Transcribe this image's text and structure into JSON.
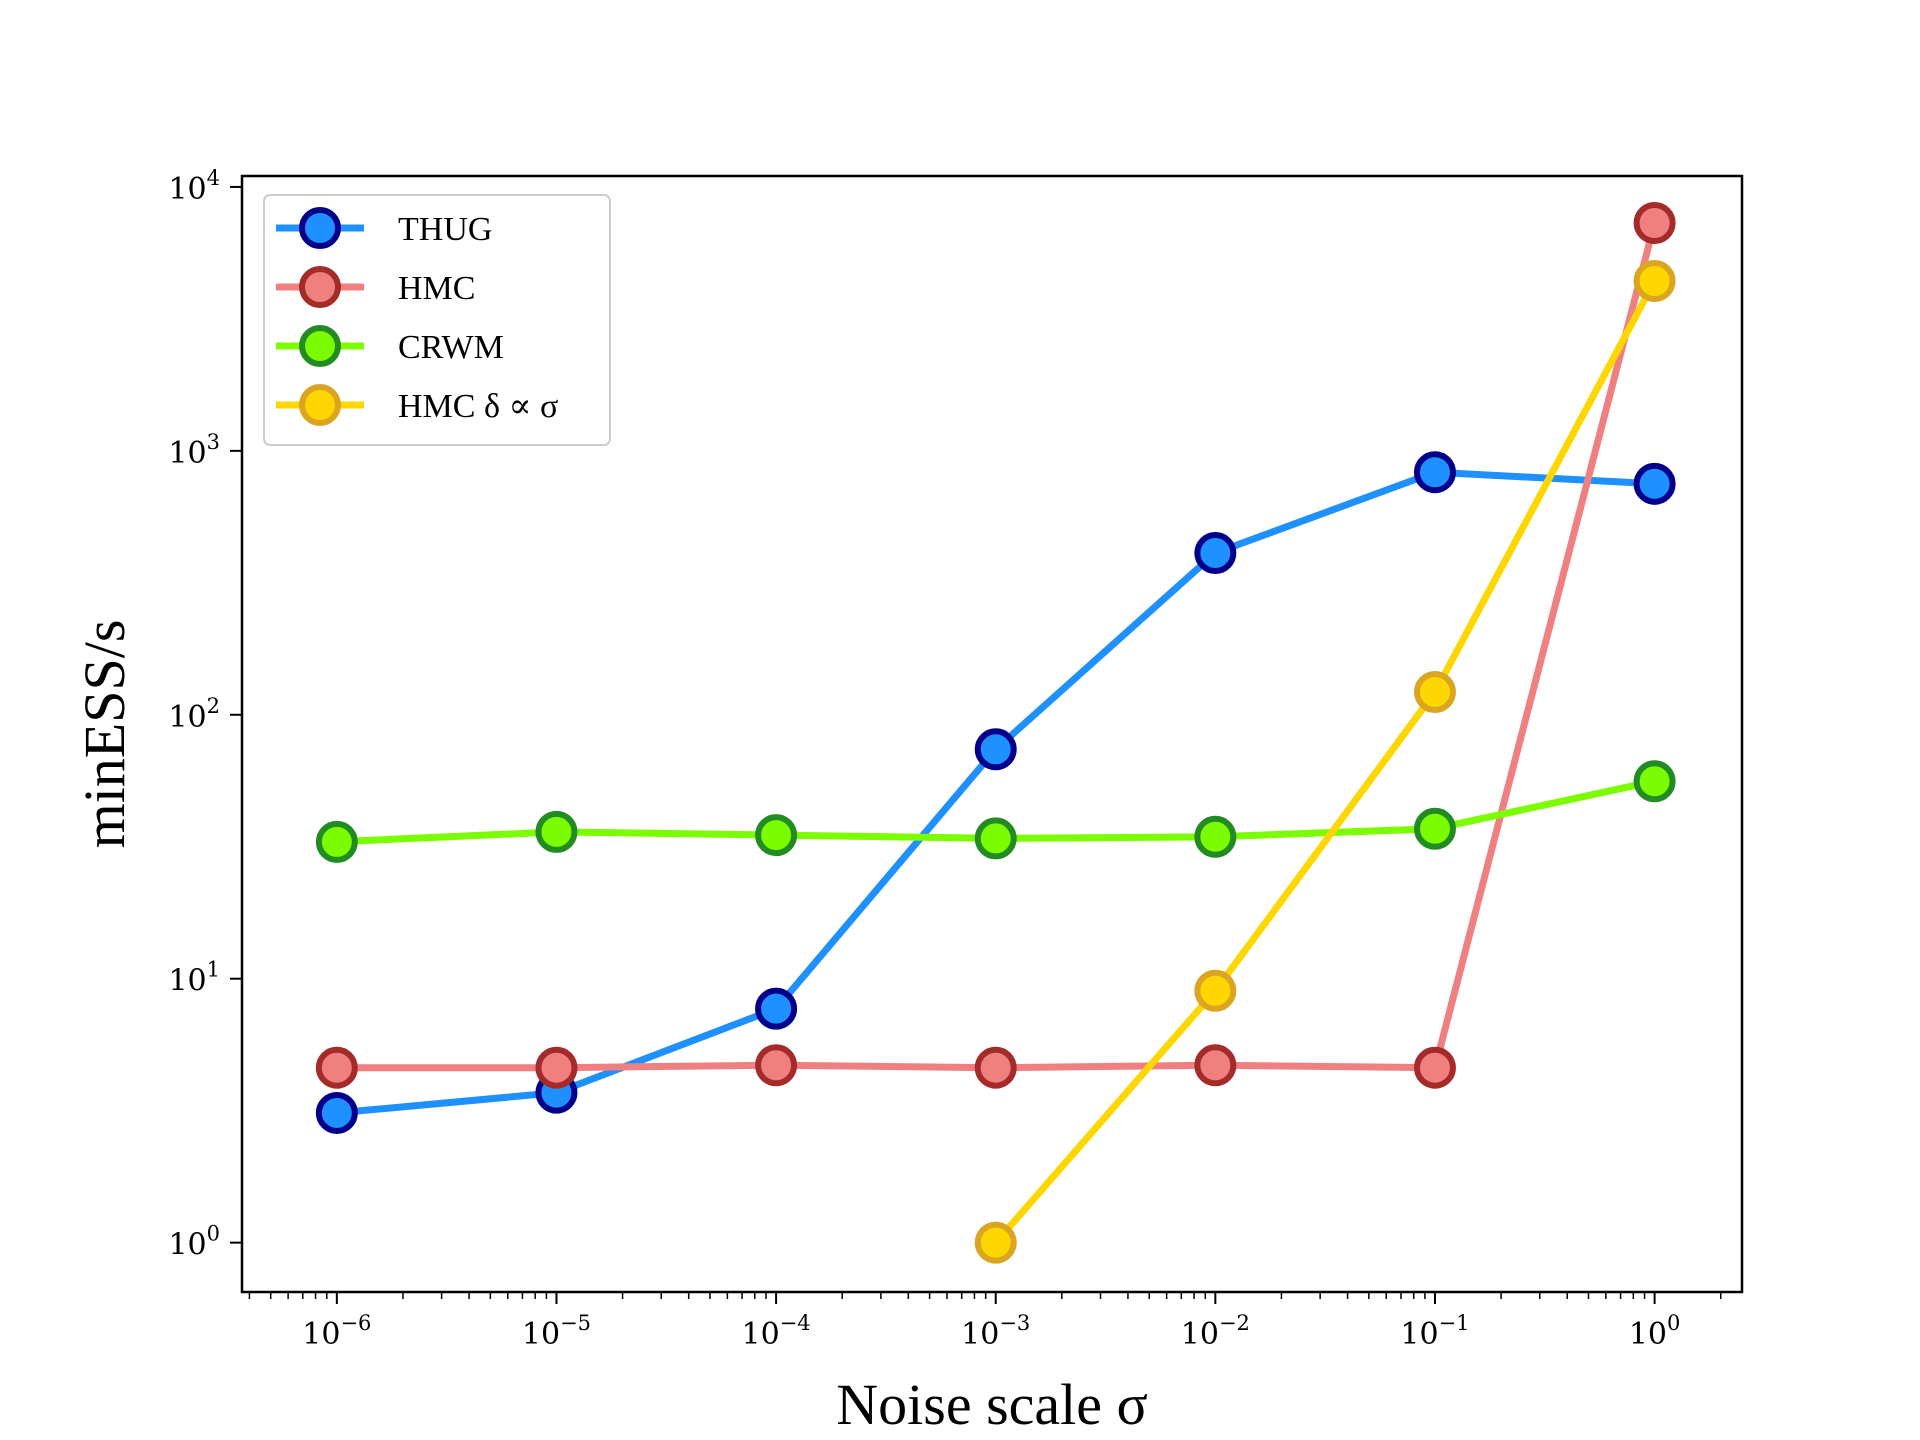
{
  "chart_data": {
    "type": "line",
    "xlabel": "Noise scale σ",
    "ylabel": "minESS/s",
    "xscale": "log",
    "yscale": "log",
    "xlim": [
      3.7e-07,
      2.5
    ],
    "ylim": [
      0.65,
      11000
    ],
    "grid": false,
    "legend_position": "upper-left",
    "x_tick_labels": [
      {
        "value": 1e-06,
        "base": "10",
        "exp": "−6"
      },
      {
        "value": 1e-05,
        "base": "10",
        "exp": "−5"
      },
      {
        "value": 0.0001,
        "base": "10",
        "exp": "−4"
      },
      {
        "value": 0.001,
        "base": "10",
        "exp": "−3"
      },
      {
        "value": 0.01,
        "base": "10",
        "exp": "−2"
      },
      {
        "value": 0.1,
        "base": "10",
        "exp": "−1"
      },
      {
        "value": 1,
        "base": "10",
        "exp": "0"
      }
    ],
    "y_tick_labels": [
      {
        "value": 1,
        "base": "10",
        "exp": "0"
      },
      {
        "value": 10,
        "base": "10",
        "exp": "1"
      },
      {
        "value": 100,
        "base": "10",
        "exp": "2"
      },
      {
        "value": 1000,
        "base": "10",
        "exp": "3"
      },
      {
        "value": 10000,
        "base": "10",
        "exp": "4"
      }
    ],
    "series": [
      {
        "name": "THUG",
        "line_color": "#1e90ff",
        "marker_fill": "#1e90ff",
        "marker_edge": "#00008b",
        "x": [
          1e-06,
          1e-05,
          0.0001,
          0.001,
          0.01,
          0.1,
          1
        ],
        "y": [
          3.1,
          3.7,
          7.7,
          74,
          410,
          830,
          750
        ]
      },
      {
        "name": "HMC",
        "line_color": "#f08080",
        "marker_fill": "#f08080",
        "marker_edge": "#a52a2a",
        "x": [
          1e-06,
          1e-05,
          0.0001,
          0.001,
          0.01,
          0.1,
          1
        ],
        "y": [
          4.6,
          4.6,
          4.7,
          4.6,
          4.7,
          4.6,
          7300
        ]
      },
      {
        "name": "CRWM",
        "line_color": "#7cfc00",
        "marker_fill": "#7cfc00",
        "marker_edge": "#228b22",
        "x": [
          1e-06,
          1e-05,
          0.0001,
          0.001,
          0.01,
          0.1,
          1
        ],
        "y": [
          33,
          36,
          35,
          34,
          34.5,
          37,
          56
        ]
      },
      {
        "name": "HMC δ ∝ σ",
        "line_color": "#ffd700",
        "marker_fill": "#ffd700",
        "marker_edge": "#daa520",
        "x": [
          0.001,
          0.01,
          0.1,
          1
        ],
        "y": [
          1.0,
          9.0,
          122,
          4400
        ]
      }
    ]
  }
}
